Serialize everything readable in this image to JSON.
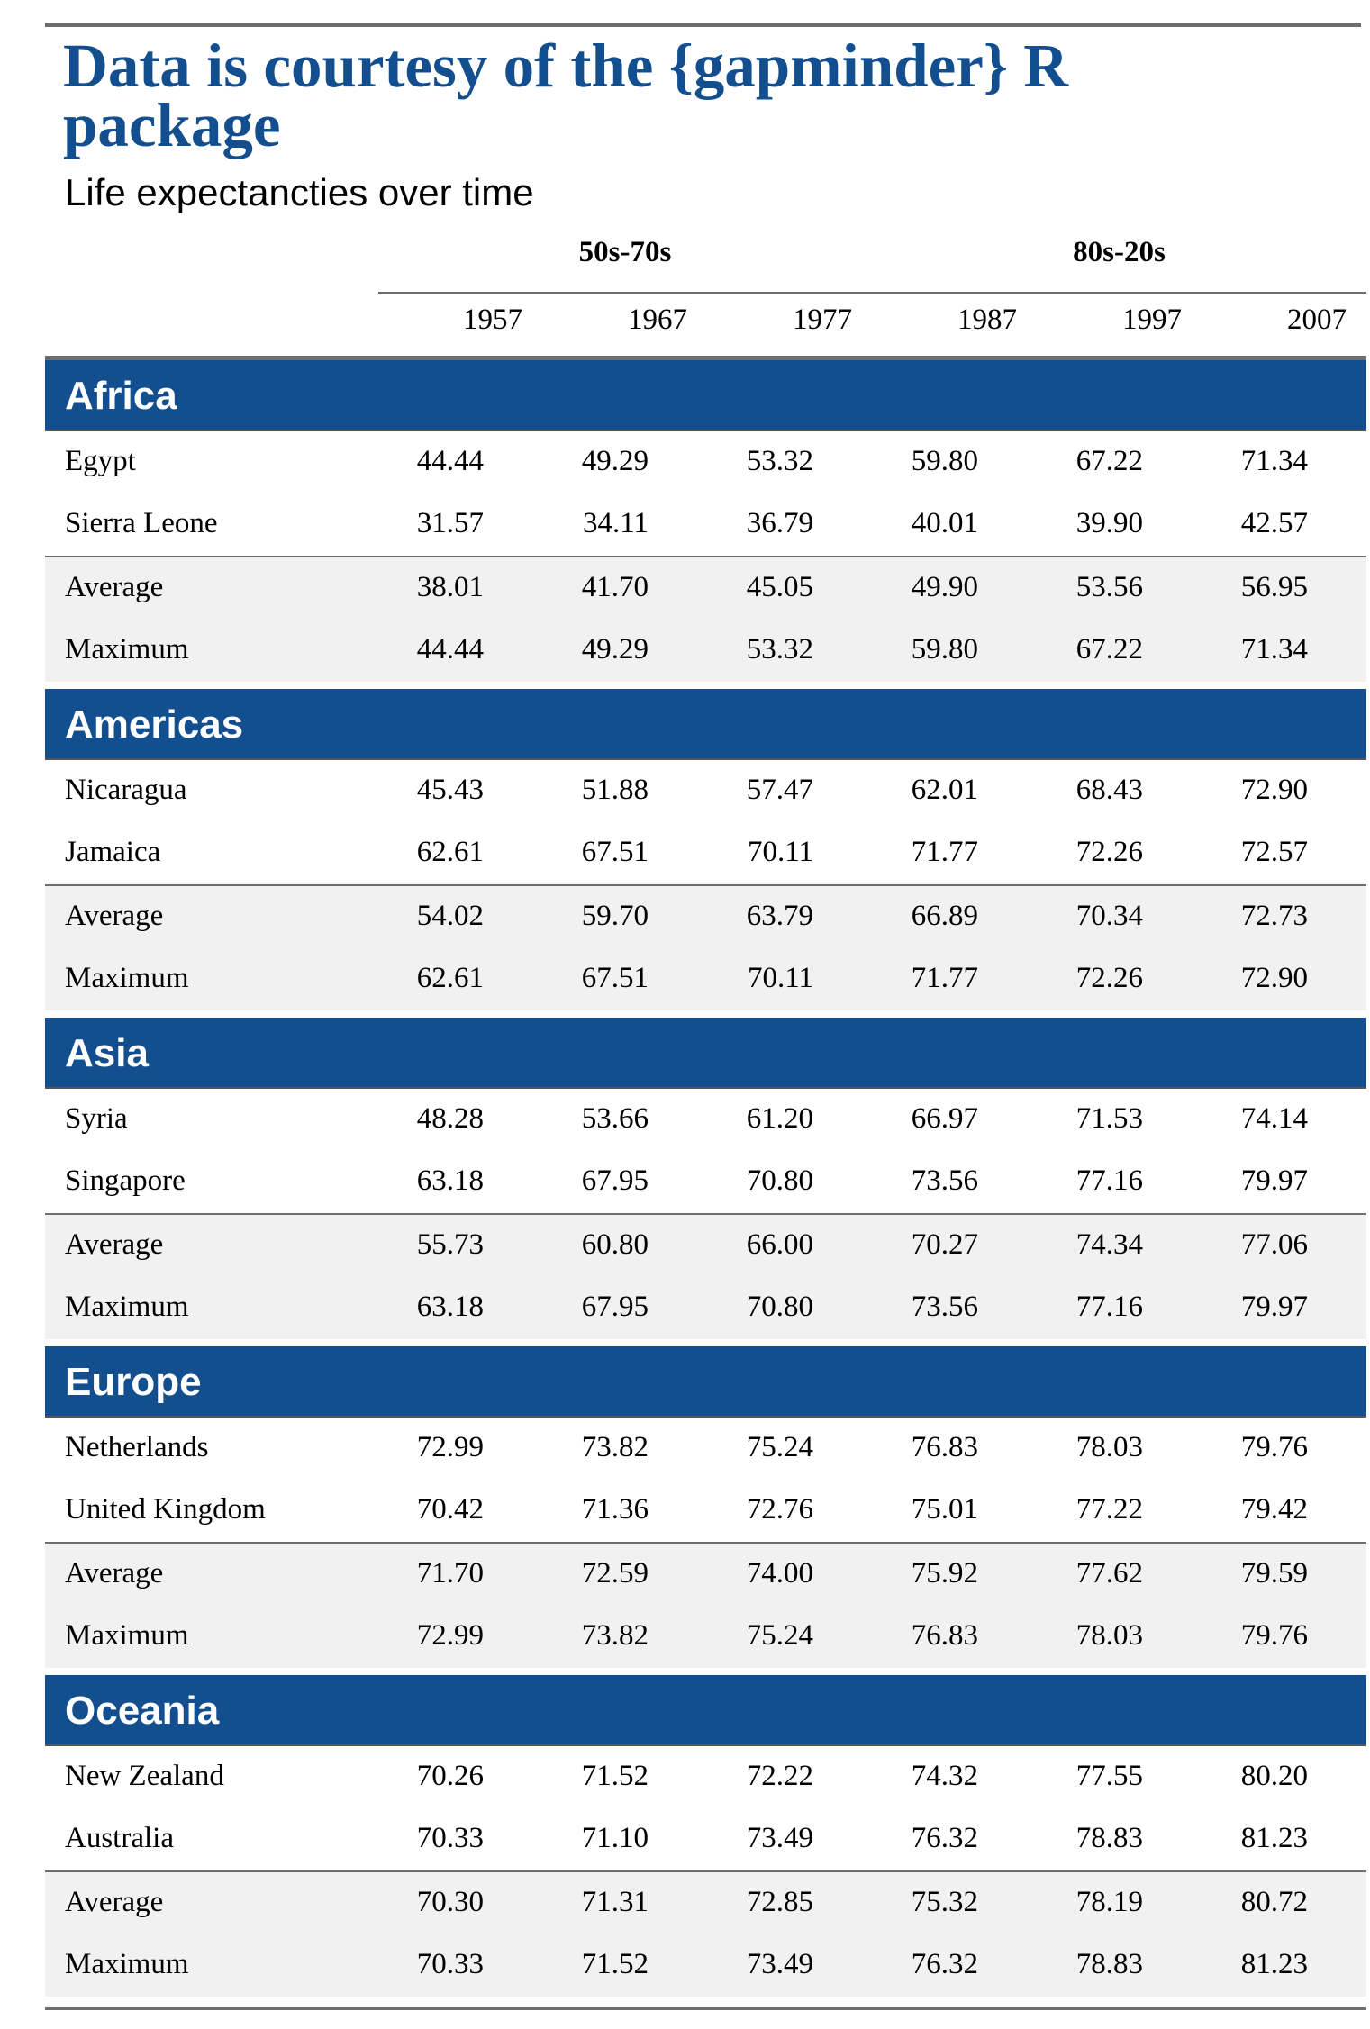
{
  "title": "Data is courtesy of the {gapminder} R package",
  "subtitle": "Life expectancties over time",
  "spanners": [
    "50s-70s",
    "80s-20s"
  ],
  "columns": [
    "1957",
    "1967",
    "1977",
    "1987",
    "1997",
    "2007"
  ],
  "groups": [
    {
      "name": "Africa",
      "rows": [
        {
          "label": "Egypt",
          "values": [
            "44.44",
            "49.29",
            "53.32",
            "59.80",
            "67.22",
            "71.34"
          ]
        },
        {
          "label": "Sierra Leone",
          "values": [
            "31.57",
            "34.11",
            "36.79",
            "40.01",
            "39.90",
            "42.57"
          ]
        }
      ],
      "summary": [
        {
          "label": "Average",
          "values": [
            "38.01",
            "41.70",
            "45.05",
            "49.90",
            "53.56",
            "56.95"
          ]
        },
        {
          "label": "Maximum",
          "values": [
            "44.44",
            "49.29",
            "53.32",
            "59.80",
            "67.22",
            "71.34"
          ]
        }
      ]
    },
    {
      "name": "Americas",
      "rows": [
        {
          "label": "Nicaragua",
          "values": [
            "45.43",
            "51.88",
            "57.47",
            "62.01",
            "68.43",
            "72.90"
          ]
        },
        {
          "label": "Jamaica",
          "values": [
            "62.61",
            "67.51",
            "70.11",
            "71.77",
            "72.26",
            "72.57"
          ]
        }
      ],
      "summary": [
        {
          "label": "Average",
          "values": [
            "54.02",
            "59.70",
            "63.79",
            "66.89",
            "70.34",
            "72.73"
          ]
        },
        {
          "label": "Maximum",
          "values": [
            "62.61",
            "67.51",
            "70.11",
            "71.77",
            "72.26",
            "72.90"
          ]
        }
      ]
    },
    {
      "name": "Asia",
      "rows": [
        {
          "label": "Syria",
          "values": [
            "48.28",
            "53.66",
            "61.20",
            "66.97",
            "71.53",
            "74.14"
          ]
        },
        {
          "label": "Singapore",
          "values": [
            "63.18",
            "67.95",
            "70.80",
            "73.56",
            "77.16",
            "79.97"
          ]
        }
      ],
      "summary": [
        {
          "label": "Average",
          "values": [
            "55.73",
            "60.80",
            "66.00",
            "70.27",
            "74.34",
            "77.06"
          ]
        },
        {
          "label": "Maximum",
          "values": [
            "63.18",
            "67.95",
            "70.80",
            "73.56",
            "77.16",
            "79.97"
          ]
        }
      ]
    },
    {
      "name": "Europe",
      "rows": [
        {
          "label": "Netherlands",
          "values": [
            "72.99",
            "73.82",
            "75.24",
            "76.83",
            "78.03",
            "79.76"
          ]
        },
        {
          "label": "United Kingdom",
          "values": [
            "70.42",
            "71.36",
            "72.76",
            "75.01",
            "77.22",
            "79.42"
          ]
        }
      ],
      "summary": [
        {
          "label": "Average",
          "values": [
            "71.70",
            "72.59",
            "74.00",
            "75.92",
            "77.62",
            "79.59"
          ]
        },
        {
          "label": "Maximum",
          "values": [
            "72.99",
            "73.82",
            "75.24",
            "76.83",
            "78.03",
            "79.76"
          ]
        }
      ]
    },
    {
      "name": "Oceania",
      "rows": [
        {
          "label": "New Zealand",
          "values": [
            "70.26",
            "71.52",
            "72.22",
            "74.32",
            "77.55",
            "80.20"
          ]
        },
        {
          "label": "Australia",
          "values": [
            "70.33",
            "71.10",
            "73.49",
            "76.32",
            "78.83",
            "81.23"
          ]
        }
      ],
      "summary": [
        {
          "label": "Average",
          "values": [
            "70.30",
            "71.31",
            "72.85",
            "75.32",
            "78.19",
            "80.72"
          ]
        },
        {
          "label": "Maximum",
          "values": [
            "70.33",
            "71.52",
            "73.49",
            "76.32",
            "78.83",
            "81.23"
          ]
        }
      ]
    }
  ],
  "colors": {
    "title": "#134f8f",
    "group_band": "#134f8f",
    "group_text": "#ffffff",
    "summary_bg": "#f1f1f1",
    "rules": "#6d6d6d"
  }
}
